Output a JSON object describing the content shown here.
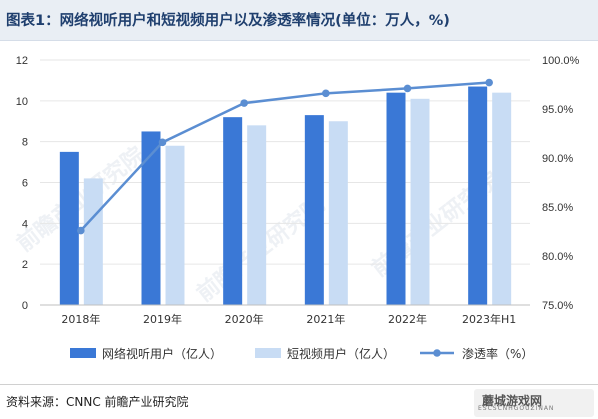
{
  "title": "图表1：网络视听用户和短视频用户以及渗透率情况(单位：万人，%)",
  "source": "资料来源：CNNC 前瞻产业研究院",
  "watermark": {
    "brand": "前瞻产业研究院",
    "logo_text": "蘑城游戏网",
    "url": "ESCSCNHGOUZINAN"
  },
  "colors": {
    "series1": "#3a78d6",
    "series2": "#c8dcf4",
    "line": "#5b8ed2",
    "title": "#1f3f6e",
    "grid": "#e6e6e6"
  },
  "chart_data": {
    "type": "bar",
    "categories": [
      "2018年",
      "2019年",
      "2020年",
      "2021年",
      "2022年",
      "2023年H1"
    ],
    "series": [
      {
        "name": "网络视听用户（亿人）",
        "type": "bar",
        "axis": "left",
        "values": [
          7.5,
          8.5,
          9.2,
          9.3,
          10.4,
          10.7
        ]
      },
      {
        "name": "短视频用户（亿人）",
        "type": "bar",
        "axis": "left",
        "values": [
          6.2,
          7.8,
          8.8,
          9.0,
          10.1,
          10.4
        ]
      },
      {
        "name": "渗透率（%）",
        "type": "line",
        "axis": "right",
        "values": [
          82.6,
          91.6,
          95.6,
          96.6,
          97.1,
          97.7
        ]
      }
    ],
    "y_left": {
      "min": 0,
      "max": 12,
      "ticks": [
        "0",
        "2",
        "4",
        "6",
        "8",
        "10",
        "12"
      ]
    },
    "y_right": {
      "min": 75,
      "max": 100,
      "ticks": [
        "75.0%",
        "80.0%",
        "85.0%",
        "90.0%",
        "95.0%",
        "100.0%"
      ]
    },
    "grid": true,
    "legend_position": "bottom"
  }
}
